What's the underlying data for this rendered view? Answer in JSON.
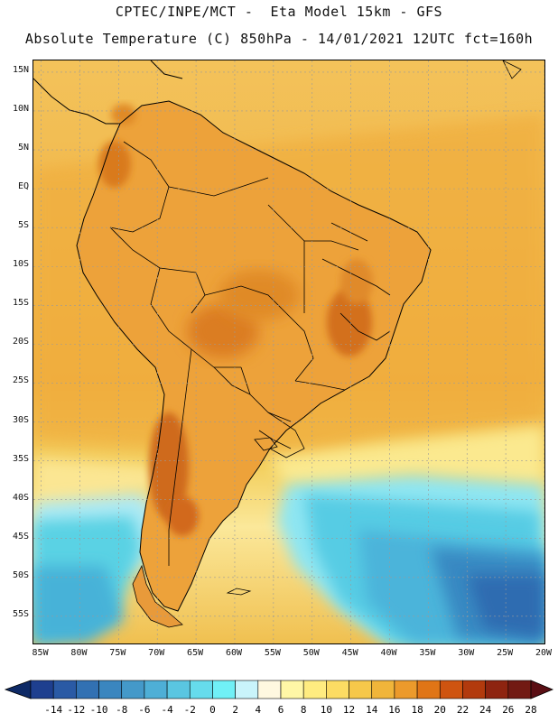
{
  "title_line1": "CPTEC/INPE/MCT -  Eta Model 15km - GFS",
  "title_line2": "Absolute Temperature (C) 850hPa - 14/01/2021 12UTC fct=160h",
  "lat_labels": [
    {
      "label": "15N",
      "lat": 15
    },
    {
      "label": "10N",
      "lat": 10
    },
    {
      "label": "5N",
      "lat": 5
    },
    {
      "label": "EQ",
      "lat": 0
    },
    {
      "label": "5S",
      "lat": -5
    },
    {
      "label": "10S",
      "lat": -10
    },
    {
      "label": "15S",
      "lat": -15
    },
    {
      "label": "20S",
      "lat": -20
    },
    {
      "label": "25S",
      "lat": -25
    },
    {
      "label": "30S",
      "lat": -30
    },
    {
      "label": "35S",
      "lat": -35
    },
    {
      "label": "40S",
      "lat": -40
    },
    {
      "label": "45S",
      "lat": -45
    },
    {
      "label": "50S",
      "lat": -50
    },
    {
      "label": "55S",
      "lat": -55
    }
  ],
  "lon_labels": [
    {
      "label": "85W",
      "lon": -85
    },
    {
      "label": "80W",
      "lon": -80
    },
    {
      "label": "75W",
      "lon": -75
    },
    {
      "label": "70W",
      "lon": -70
    },
    {
      "label": "65W",
      "lon": -65
    },
    {
      "label": "60W",
      "lon": -60
    },
    {
      "label": "55W",
      "lon": -55
    },
    {
      "label": "50W",
      "lon": -50
    },
    {
      "label": "45W",
      "lon": -45
    },
    {
      "label": "40W",
      "lon": -40
    },
    {
      "label": "35W",
      "lon": -35
    },
    {
      "label": "30W",
      "lon": -30
    },
    {
      "label": "25W",
      "lon": -25
    },
    {
      "label": "20W",
      "lon": -20
    }
  ],
  "map_extent": {
    "lon_min": -86,
    "lon_max": -20,
    "lat_min": -58.5,
    "lat_max": 16.5
  },
  "colorbar": {
    "tick_labels": [
      "-14",
      "-12",
      "-10",
      "-8",
      "-6",
      "-4",
      "-2",
      "0",
      "2",
      "4",
      "6",
      "8",
      "10",
      "12",
      "14",
      "16",
      "18",
      "20",
      "22",
      "24",
      "26",
      "28"
    ],
    "colors": [
      "#1e3f8f",
      "#2a5aa5",
      "#3271b3",
      "#3a86bf",
      "#4499c9",
      "#4eafd6",
      "#5ac6e1",
      "#66dcec",
      "#70f0f6",
      "#c9f4fb",
      "#fff8e0",
      "#fff7a6",
      "#ffec80",
      "#fcdc63",
      "#f6c84a",
      "#f0b53a",
      "#ec9a2b",
      "#e07516",
      "#cf5410",
      "#b23a0d",
      "#8e2410",
      "#721a13"
    ],
    "under_color": "#0e2a66",
    "over_color": "#5a0f14"
  },
  "colors": {
    "sea_orange": "#efb34a",
    "land_orange": "#e99b2c",
    "hot": "#d97a1e",
    "coast_line": "#000000",
    "grid": "#9a9a9a"
  }
}
